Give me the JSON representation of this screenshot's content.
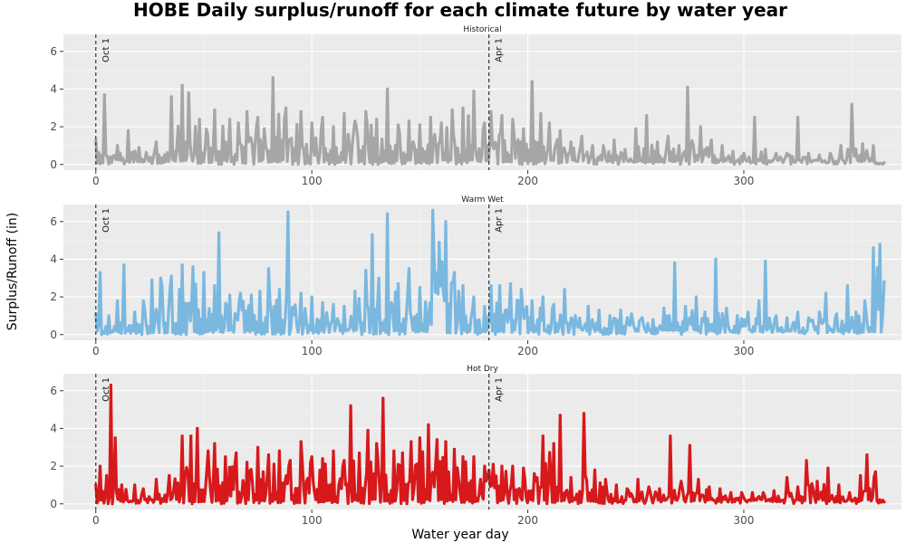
{
  "chart_data": {
    "type": "line",
    "title": "HOBE Daily surplus/runoff for each climate future by water year",
    "xlabel": "Water year day",
    "ylabel": "Surplus/Runoff (in)",
    "xlim": [
      -15,
      373
    ],
    "ylim": [
      -0.3,
      6.9
    ],
    "x_ticks": [
      0,
      100,
      200,
      300
    ],
    "y_ticks": [
      0,
      2,
      4,
      6
    ],
    "grid": true,
    "reference_lines": [
      {
        "x": 0,
        "label": "Oct 1"
      },
      {
        "x": 182,
        "label": "Apr 1"
      }
    ],
    "panels": [
      {
        "name": "Historical",
        "color": "#a6a6a6",
        "peaks": [
          [
            0,
            1.3
          ],
          [
            4,
            3.7
          ],
          [
            10,
            1.0
          ],
          [
            15,
            1.8
          ],
          [
            20,
            0.9
          ],
          [
            28,
            1.2
          ],
          [
            35,
            3.6
          ],
          [
            40,
            4.2
          ],
          [
            43,
            3.8
          ],
          [
            48,
            2.4
          ],
          [
            55,
            2.9
          ],
          [
            62,
            2.4
          ],
          [
            66,
            2.2
          ],
          [
            70,
            2.8
          ],
          [
            75,
            2.5
          ],
          [
            78,
            1.9
          ],
          [
            82,
            4.6
          ],
          [
            88,
            3.0
          ],
          [
            95,
            2.8
          ],
          [
            100,
            2.2
          ],
          [
            105,
            2.5
          ],
          [
            110,
            2.0
          ],
          [
            115,
            2.7
          ],
          [
            120,
            2.3
          ],
          [
            125,
            2.8
          ],
          [
            130,
            2.4
          ],
          [
            135,
            4.0
          ],
          [
            140,
            2.1
          ],
          [
            145,
            2.3
          ],
          [
            150,
            2.1
          ],
          [
            155,
            2.5
          ],
          [
            160,
            2.2
          ],
          [
            165,
            2.9
          ],
          [
            170,
            3.0
          ],
          [
            175,
            3.9
          ],
          [
            180,
            2.2
          ],
          [
            183,
            2.8
          ],
          [
            188,
            2.6
          ],
          [
            193,
            2.4
          ],
          [
            198,
            1.9
          ],
          [
            202,
            4.4
          ],
          [
            206,
            2.7
          ],
          [
            210,
            2.2
          ],
          [
            215,
            1.8
          ],
          [
            220,
            1.2
          ],
          [
            225,
            1.5
          ],
          [
            230,
            1.0
          ],
          [
            235,
            1.0
          ],
          [
            240,
            1.3
          ],
          [
            245,
            0.8
          ],
          [
            250,
            1.9
          ],
          [
            255,
            2.6
          ],
          [
            260,
            1.2
          ],
          [
            265,
            1.5
          ],
          [
            270,
            1.0
          ],
          [
            274,
            4.1
          ],
          [
            280,
            2.0
          ],
          [
            285,
            1.3
          ],
          [
            290,
            1.0
          ],
          [
            295,
            0.7
          ],
          [
            300,
            0.6
          ],
          [
            305,
            2.5
          ],
          [
            310,
            0.8
          ],
          [
            315,
            0.6
          ],
          [
            320,
            0.6
          ],
          [
            325,
            2.5
          ],
          [
            330,
            0.6
          ],
          [
            335,
            0.5
          ],
          [
            340,
            0.6
          ],
          [
            345,
            1.0
          ],
          [
            350,
            3.2
          ],
          [
            355,
            1.1
          ],
          [
            360,
            1.0
          ],
          [
            365,
            0.1
          ]
        ]
      },
      {
        "name": "Warm Wet",
        "color": "#7ab8e0",
        "peaks": [
          [
            0,
            1.1
          ],
          [
            2,
            3.3
          ],
          [
            6,
            1.0
          ],
          [
            10,
            1.8
          ],
          [
            13,
            3.7
          ],
          [
            18,
            1.2
          ],
          [
            22,
            1.8
          ],
          [
            26,
            2.9
          ],
          [
            30,
            3.0
          ],
          [
            35,
            3.1
          ],
          [
            40,
            3.7
          ],
          [
            45,
            3.6
          ],
          [
            50,
            3.3
          ],
          [
            55,
            2.6
          ],
          [
            57,
            5.4
          ],
          [
            62,
            2.1
          ],
          [
            67,
            2.2
          ],
          [
            72,
            2.1
          ],
          [
            76,
            2.3
          ],
          [
            80,
            3.5
          ],
          [
            85,
            2.4
          ],
          [
            89,
            6.5
          ],
          [
            95,
            2.2
          ],
          [
            100,
            2.0
          ],
          [
            105,
            1.7
          ],
          [
            110,
            1.6
          ],
          [
            115,
            1.5
          ],
          [
            120,
            2.3
          ],
          [
            125,
            3.4
          ],
          [
            128,
            5.3
          ],
          [
            131,
            3.0
          ],
          [
            135,
            6.4
          ],
          [
            140,
            2.7
          ],
          [
            145,
            3.5
          ],
          [
            150,
            2.5
          ],
          [
            156,
            6.6
          ],
          [
            159,
            4.9
          ],
          [
            162,
            6.0
          ],
          [
            166,
            3.3
          ],
          [
            170,
            2.6
          ],
          [
            175,
            2.0
          ],
          [
            180,
            1.5
          ],
          [
            183,
            2.6
          ],
          [
            187,
            2.6
          ],
          [
            192,
            2.7
          ],
          [
            197,
            2.4
          ],
          [
            202,
            1.8
          ],
          [
            207,
            2.0
          ],
          [
            212,
            1.6
          ],
          [
            217,
            2.4
          ],
          [
            222,
            1.0
          ],
          [
            228,
            1.5
          ],
          [
            233,
            1.3
          ],
          [
            238,
            1.0
          ],
          [
            243,
            1.3
          ],
          [
            248,
            1.1
          ],
          [
            253,
            0.9
          ],
          [
            258,
            0.8
          ],
          [
            263,
            1.4
          ],
          [
            268,
            3.8
          ],
          [
            273,
            1.5
          ],
          [
            278,
            2.0
          ],
          [
            282,
            1.2
          ],
          [
            287,
            4.0
          ],
          [
            292,
            1.4
          ],
          [
            297,
            1.0
          ],
          [
            302,
            1.2
          ],
          [
            307,
            1.8
          ],
          [
            310,
            3.9
          ],
          [
            315,
            1.0
          ],
          [
            320,
            0.9
          ],
          [
            325,
            1.2
          ],
          [
            330,
            0.9
          ],
          [
            335,
            1.2
          ],
          [
            338,
            2.2
          ],
          [
            343,
            1.1
          ],
          [
            348,
            2.6
          ],
          [
            352,
            1.2
          ],
          [
            356,
            1.8
          ],
          [
            360,
            4.6
          ],
          [
            363,
            4.8
          ],
          [
            365,
            2.8
          ]
        ]
      },
      {
        "name": "Hot Dry",
        "color": "#d7191c",
        "peaks": [
          [
            0,
            1.0
          ],
          [
            2,
            2.0
          ],
          [
            5,
            1.5
          ],
          [
            7,
            6.3
          ],
          [
            9,
            3.5
          ],
          [
            12,
            1.0
          ],
          [
            18,
            1.0
          ],
          [
            22,
            0.8
          ],
          [
            28,
            1.3
          ],
          [
            34,
            1.5
          ],
          [
            40,
            3.6
          ],
          [
            44,
            3.6
          ],
          [
            47,
            4.0
          ],
          [
            52,
            2.8
          ],
          [
            55,
            3.2
          ],
          [
            60,
            2.5
          ],
          [
            65,
            2.7
          ],
          [
            70,
            2.2
          ],
          [
            75,
            3.0
          ],
          [
            80,
            2.6
          ],
          [
            85,
            2.8
          ],
          [
            90,
            2.3
          ],
          [
            95,
            3.3
          ],
          [
            100,
            2.5
          ],
          [
            105,
            2.4
          ],
          [
            110,
            2.8
          ],
          [
            115,
            2.3
          ],
          [
            118,
            5.2
          ],
          [
            122,
            2.7
          ],
          [
            126,
            3.9
          ],
          [
            130,
            3.2
          ],
          [
            133,
            5.6
          ],
          [
            138,
            2.8
          ],
          [
            142,
            2.7
          ],
          [
            146,
            3.3
          ],
          [
            150,
            3.5
          ],
          [
            154,
            4.2
          ],
          [
            158,
            3.4
          ],
          [
            162,
            3.3
          ],
          [
            166,
            2.9
          ],
          [
            170,
            2.5
          ],
          [
            175,
            2.5
          ],
          [
            180,
            2.0
          ],
          [
            184,
            2.1
          ],
          [
            188,
            2.0
          ],
          [
            193,
            2.0
          ],
          [
            198,
            1.9
          ],
          [
            203,
            1.6
          ],
          [
            207,
            3.6
          ],
          [
            212,
            3.2
          ],
          [
            215,
            4.7
          ],
          [
            220,
            1.4
          ],
          [
            226,
            4.8
          ],
          [
            231,
            1.8
          ],
          [
            236,
            1.3
          ],
          [
            241,
            1.0
          ],
          [
            246,
            0.8
          ],
          [
            251,
            1.3
          ],
          [
            256,
            0.9
          ],
          [
            261,
            0.8
          ],
          [
            266,
            3.6
          ],
          [
            271,
            1.2
          ],
          [
            275,
            3.1
          ],
          [
            279,
            1.3
          ],
          [
            284,
            0.9
          ],
          [
            289,
            0.8
          ],
          [
            294,
            0.6
          ],
          [
            299,
            0.6
          ],
          [
            304,
            0.6
          ],
          [
            309,
            0.6
          ],
          [
            314,
            0.7
          ],
          [
            320,
            1.4
          ],
          [
            325,
            0.9
          ],
          [
            329,
            2.3
          ],
          [
            334,
            1.2
          ],
          [
            339,
            1.9
          ],
          [
            344,
            1.0
          ],
          [
            349,
            0.6
          ],
          [
            354,
            1.5
          ],
          [
            357,
            2.6
          ],
          [
            361,
            1.7
          ],
          [
            365,
            0.1
          ]
        ]
      }
    ]
  }
}
